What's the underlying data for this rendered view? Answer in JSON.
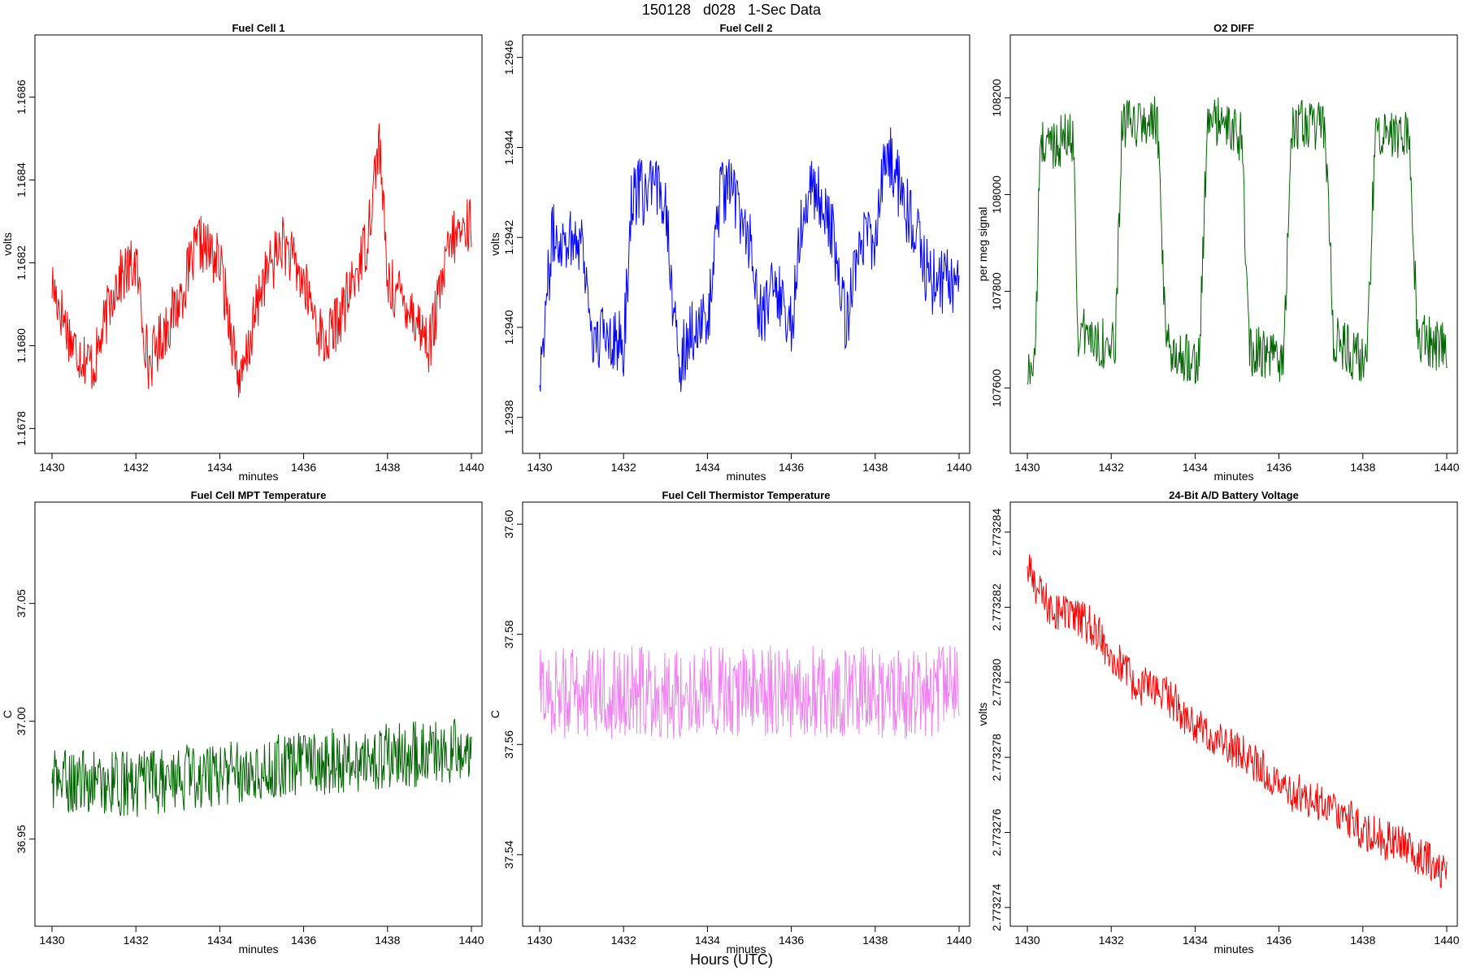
{
  "figure": {
    "title": "150128   d028   1-Sec Data",
    "footer_xlabel": "Hours (UTC)"
  },
  "chart_data": [
    {
      "type": "line",
      "title": "Fuel Cell 1",
      "xlabel": "minutes",
      "ylabel": "volts",
      "color": "#ff0000",
      "xlim": [
        1430,
        1440
      ],
      "ylim": [
        1.16774,
        1.16875
      ],
      "xticks": [
        1430,
        1432,
        1434,
        1436,
        1438,
        1440
      ],
      "xtick_labels": [
        "1430",
        "1432",
        "1434",
        "1436",
        "1438",
        "1440"
      ],
      "yticks": [
        1.1678,
        1.168,
        1.1682,
        1.1684,
        1.1686
      ],
      "ytick_labels": [
        "1.1678",
        "1.1680",
        "1.1682",
        "1.1684",
        "1.1686"
      ],
      "x": [
        1430,
        1430.5,
        1431,
        1431.5,
        1432,
        1432.3,
        1432.5,
        1433,
        1433.5,
        1434,
        1434.5,
        1435,
        1435.5,
        1436,
        1436.5,
        1437,
        1437.5,
        1437.8,
        1438,
        1438.5,
        1439,
        1439.5,
        1440
      ],
      "y": [
        1.16815,
        1.168,
        1.16795,
        1.16815,
        1.1682,
        1.16795,
        1.168,
        1.1681,
        1.16825,
        1.1682,
        1.1679,
        1.16815,
        1.16825,
        1.16815,
        1.168,
        1.1681,
        1.16825,
        1.1685,
        1.16815,
        1.1681,
        1.168,
        1.16825,
        1.1683
      ],
      "noise": 7e-05
    },
    {
      "type": "line",
      "title": "Fuel Cell 2",
      "xlabel": "minutes",
      "ylabel": "volts",
      "color": "#0000ff",
      "xlim": [
        1430,
        1440
      ],
      "ylim": [
        1.29372,
        1.29465
      ],
      "xticks": [
        1430,
        1432,
        1434,
        1436,
        1438,
        1440
      ],
      "xtick_labels": [
        "1430",
        "1432",
        "1434",
        "1436",
        "1438",
        "1440"
      ],
      "yticks": [
        1.2938,
        1.294,
        1.2942,
        1.2944,
        1.2946
      ],
      "ytick_labels": [
        "1.2938",
        "1.2940",
        "1.2942",
        "1.2944",
        "1.2946"
      ],
      "x": [
        1430,
        1430.3,
        1430.6,
        1431,
        1431.3,
        1431.6,
        1432,
        1432.2,
        1432.5,
        1432.8,
        1433,
        1433.3,
        1433.6,
        1434,
        1434.3,
        1434.6,
        1435,
        1435.3,
        1435.6,
        1436,
        1436.3,
        1436.6,
        1437,
        1437.3,
        1437.6,
        1438,
        1438.3,
        1438.6,
        1439,
        1439.3,
        1439.6,
        1440
      ],
      "y": [
        1.2939,
        1.2942,
        1.2942,
        1.2942,
        1.29395,
        1.294,
        1.29395,
        1.2943,
        1.2943,
        1.2943,
        1.2943,
        1.2939,
        1.294,
        1.294,
        1.2943,
        1.2943,
        1.2942,
        1.294,
        1.2941,
        1.294,
        1.2943,
        1.2943,
        1.2942,
        1.294,
        1.2942,
        1.2942,
        1.2944,
        1.2943,
        1.2942,
        1.2941,
        1.2941,
        1.2941
      ],
      "noise": 7.5e-05
    },
    {
      "type": "line",
      "title": "O2 DIFF",
      "xlabel": "minutes",
      "ylabel": "per meg signal",
      "color": "#006400",
      "xlim": [
        1430,
        1440
      ],
      "ylim": [
        107465,
        108330
      ],
      "xticks": [
        1430,
        1432,
        1434,
        1436,
        1438,
        1440
      ],
      "xtick_labels": [
        "1430",
        "1432",
        "1434",
        "1436",
        "1438",
        "1440"
      ],
      "yticks": [
        107600,
        107800,
        108000,
        108200
      ],
      "ytick_labels": [
        "107600",
        "107800",
        "108000",
        "108200"
      ],
      "x": [
        1430,
        1430.2,
        1430.3,
        1431.1,
        1431.2,
        1432.1,
        1432.25,
        1433.1,
        1433.3,
        1434.1,
        1434.3,
        1435.1,
        1435.3,
        1436.1,
        1436.3,
        1437.1,
        1437.3,
        1438.1,
        1438.3,
        1439.1,
        1439.3,
        1440
      ],
      "y": [
        107620,
        107680,
        108100,
        108120,
        107720,
        107680,
        108140,
        108150,
        107680,
        107660,
        108160,
        108120,
        107680,
        107650,
        108140,
        108140,
        107700,
        107650,
        108140,
        108120,
        107710,
        107680
      ],
      "noise": 55
    },
    {
      "type": "line",
      "title": "Fuel Cell MPT Temperature",
      "xlabel": "minutes",
      "ylabel": "C",
      "color": "#006400",
      "xlim": [
        1430,
        1440
      ],
      "ylim": [
        36.913,
        37.093
      ],
      "xticks": [
        1430,
        1432,
        1434,
        1436,
        1438,
        1440
      ],
      "xtick_labels": [
        "1430",
        "1432",
        "1434",
        "1436",
        "1438",
        "1440"
      ],
      "yticks": [
        36.95,
        37.0,
        37.05
      ],
      "ytick_labels": [
        "36.95",
        "37.00",
        "37.05"
      ],
      "x": [
        1430,
        1432,
        1434,
        1436,
        1438,
        1440
      ],
      "y": [
        36.975,
        36.973,
        36.978,
        36.982,
        36.985,
        36.988
      ],
      "noise": 0.014
    },
    {
      "type": "line",
      "title": "Fuel Cell Thermistor Temperature",
      "xlabel": "minutes",
      "ylabel": "C",
      "color": "#ee82ee",
      "xlim": [
        1430,
        1440
      ],
      "ylim": [
        37.527,
        37.604
      ],
      "xticks": [
        1430,
        1432,
        1434,
        1436,
        1438,
        1440
      ],
      "xtick_labels": [
        "1430",
        "1432",
        "1434",
        "1436",
        "1438",
        "1440"
      ],
      "yticks": [
        37.54,
        37.56,
        37.58,
        37.6
      ],
      "ytick_labels": [
        "37.54",
        "37.56",
        "37.58",
        "37.60"
      ],
      "x": [
        1430,
        1440
      ],
      "y": [
        37.5695,
        37.5695
      ],
      "noise": 0.0085
    },
    {
      "type": "line",
      "title": "24-Bit A/D Battery Voltage",
      "xlabel": "minutes",
      "ylabel": "volts",
      "color": "#ff0000",
      "xlim": [
        1430,
        1440
      ],
      "ylim": [
        2.7732735,
        2.7732848
      ],
      "xticks": [
        1430,
        1432,
        1434,
        1436,
        1438,
        1440
      ],
      "xtick_labels": [
        "1430",
        "1432",
        "1434",
        "1436",
        "1438",
        "1440"
      ],
      "yticks": [
        2.773274,
        2.773276,
        2.773278,
        2.77328,
        2.773282,
        2.773284
      ],
      "ytick_labels": [
        "2.773274",
        "2.773276",
        "2.773278",
        "2.773280",
        "2.773282",
        "2.773284"
      ],
      "x": [
        1430,
        1430.5,
        1431,
        1431.5,
        1432,
        1432.5,
        1433,
        1433.5,
        1434,
        1434.5,
        1435,
        1435.5,
        1436,
        1436.5,
        1437,
        1437.5,
        1438,
        1438.5,
        1439,
        1439.5,
        1440
      ],
      "y": [
        2.773283,
        2.773282,
        2.7732818,
        2.7732815,
        2.7732808,
        2.77328,
        2.7732798,
        2.7732795,
        2.7732788,
        2.7732785,
        2.7732782,
        2.7732778,
        2.7732772,
        2.773277,
        2.7732768,
        2.7732766,
        2.773276,
        2.7732758,
        2.7732756,
        2.7732753,
        2.7732749
      ],
      "noise": 5.5e-07
    }
  ]
}
